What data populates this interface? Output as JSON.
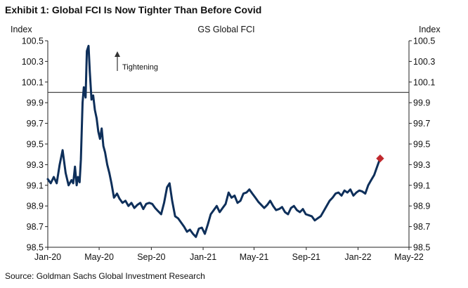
{
  "header": {
    "title": "Exhibit 1: Global FCI Is Now Tighter Than Before Covid"
  },
  "footer": {
    "source": "Source: Goldman Sachs Global Investment Research"
  },
  "chart_data": {
    "type": "line",
    "title": "GS Global FCI",
    "ylabel_left": "Index",
    "ylabel_right": "Index",
    "ylim": [
      98.5,
      100.5
    ],
    "yticks": [
      "100.5",
      "100.3",
      "100.1",
      "99.9",
      "99.7",
      "99.5",
      "99.3",
      "99.1",
      "98.9",
      "98.7",
      "98.5"
    ],
    "xticks": [
      "Jan-20",
      "May-20",
      "Sep-20",
      "Jan-21",
      "May-21",
      "Sep-21",
      "Jan-22",
      "May-22"
    ],
    "reference_line": {
      "y": 100.0
    },
    "annotation": {
      "text": "Tightening"
    },
    "grid": false,
    "legend": "none",
    "line_color": "#0e2f5a",
    "marker_color": "#c0282d",
    "series": [
      {
        "x": [
          "2020-01-01",
          "2020-01-08",
          "2020-01-15",
          "2020-01-22",
          "2020-01-29",
          "2020-02-05",
          "2020-02-12",
          "2020-02-19",
          "2020-02-26",
          "2020-03-01",
          "2020-03-05",
          "2020-03-09",
          "2020-03-12",
          "2020-03-16",
          "2020-03-19",
          "2020-03-23",
          "2020-03-26",
          "2020-03-30",
          "2020-04-02",
          "2020-04-06",
          "2020-04-09",
          "2020-04-13",
          "2020-04-17",
          "2020-04-21",
          "2020-04-25",
          "2020-04-29",
          "2020-05-03",
          "2020-05-07",
          "2020-05-11",
          "2020-05-15",
          "2020-05-20",
          "2020-05-25",
          "2020-05-30",
          "2020-06-05",
          "2020-06-12",
          "2020-06-18",
          "2020-06-25",
          "2020-07-02",
          "2020-07-09",
          "2020-07-16",
          "2020-07-23",
          "2020-07-30",
          "2020-08-06",
          "2020-08-13",
          "2020-08-20",
          "2020-08-27",
          "2020-09-03",
          "2020-09-10",
          "2020-09-17",
          "2020-09-24",
          "2020-10-01",
          "2020-10-08",
          "2020-10-14",
          "2020-10-20",
          "2020-10-27",
          "2020-11-03",
          "2020-11-10",
          "2020-11-17",
          "2020-11-24",
          "2020-12-01",
          "2020-12-08",
          "2020-12-15",
          "2020-12-22",
          "2020-12-29",
          "2021-01-05",
          "2021-01-12",
          "2021-01-19",
          "2021-01-26",
          "2021-02-02",
          "2021-02-09",
          "2021-02-16",
          "2021-02-23",
          "2021-03-02",
          "2021-03-09",
          "2021-03-16",
          "2021-03-23",
          "2021-03-30",
          "2021-04-06",
          "2021-04-13",
          "2021-04-20",
          "2021-04-27",
          "2021-05-04",
          "2021-05-11",
          "2021-05-18",
          "2021-05-25",
          "2021-06-01",
          "2021-06-08",
          "2021-06-15",
          "2021-06-22",
          "2021-06-29",
          "2021-07-06",
          "2021-07-13",
          "2021-07-20",
          "2021-07-27",
          "2021-08-03",
          "2021-08-10",
          "2021-08-17",
          "2021-08-24",
          "2021-08-31",
          "2021-09-07",
          "2021-09-14",
          "2021-09-21",
          "2021-09-28",
          "2021-10-05",
          "2021-10-12",
          "2021-10-19",
          "2021-10-26",
          "2021-11-02",
          "2021-11-09",
          "2021-11-16",
          "2021-11-23",
          "2021-11-30",
          "2021-12-07",
          "2021-12-14",
          "2021-12-21",
          "2021-12-28",
          "2022-01-04",
          "2022-01-11",
          "2022-01-18",
          "2022-01-25",
          "2022-02-01",
          "2022-02-08",
          "2022-02-15",
          "2022-02-22"
        ],
        "y": [
          99.16,
          99.12,
          99.18,
          99.12,
          99.3,
          99.44,
          99.22,
          99.1,
          99.15,
          99.12,
          99.28,
          99.1,
          99.18,
          99.13,
          99.35,
          99.9,
          100.05,
          99.95,
          100.4,
          100.45,
          100.2,
          99.93,
          99.97,
          99.83,
          99.75,
          99.62,
          99.55,
          99.65,
          99.48,
          99.42,
          99.3,
          99.22,
          99.12,
          98.98,
          99.02,
          98.97,
          98.93,
          98.95,
          98.9,
          98.93,
          98.88,
          98.91,
          98.93,
          98.87,
          98.92,
          98.93,
          98.92,
          98.88,
          98.85,
          98.82,
          98.93,
          99.08,
          99.12,
          98.95,
          98.8,
          98.78,
          98.74,
          98.7,
          98.65,
          98.67,
          98.63,
          98.6,
          98.68,
          98.69,
          98.63,
          98.72,
          98.82,
          98.86,
          98.9,
          98.84,
          98.88,
          98.92,
          99.03,
          98.98,
          99.0,
          98.93,
          98.95,
          99.02,
          99.03,
          99.06,
          99.02,
          98.98,
          98.94,
          98.91,
          98.88,
          98.91,
          98.95,
          98.9,
          98.86,
          98.87,
          98.89,
          98.84,
          98.82,
          98.88,
          98.9,
          98.86,
          98.84,
          98.87,
          98.82,
          98.81,
          98.8,
          98.76,
          98.78,
          98.8,
          98.85,
          98.9,
          98.95,
          98.98,
          99.02,
          99.03,
          99.0,
          99.05,
          99.03,
          99.06,
          99.0,
          99.03,
          99.05,
          99.04,
          99.02,
          99.1,
          99.15,
          99.2,
          99.28,
          99.36
        ]
      }
    ],
    "last_point": {
      "x": "2022-02-22",
      "y": 99.36
    }
  }
}
